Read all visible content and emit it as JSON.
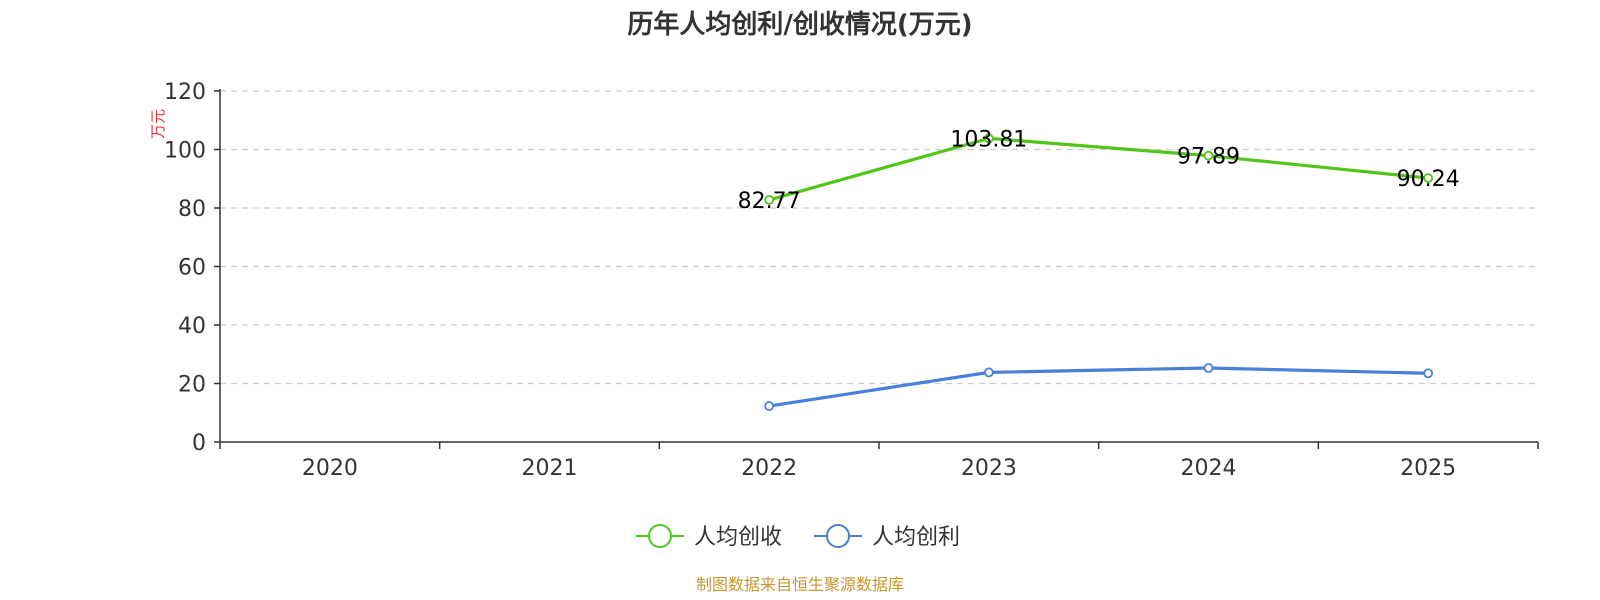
{
  "chart_data": {
    "type": "line",
    "title": "历年人均创利/创收情况(万元)",
    "ylabel": "万元",
    "xlabel": "",
    "categories": [
      "2020",
      "2021",
      "2022",
      "2023",
      "2024",
      "2025"
    ],
    "ylim": [
      0,
      120
    ],
    "yticks": [
      0,
      20,
      40,
      60,
      80,
      100,
      120
    ],
    "grid": true,
    "legend_position": "bottom-center",
    "series": [
      {
        "name": "人均创收",
        "color": "#52c41a",
        "values": [
          null,
          null,
          82.77,
          103.81,
          97.89,
          90.24
        ],
        "labels": [
          "",
          "",
          "82.77",
          "103.81",
          "97.89",
          "90.24"
        ]
      },
      {
        "name": "人均创利",
        "color": "#4a7fdc",
        "values": [
          null,
          null,
          12.3,
          23.8,
          25.3,
          23.5
        ],
        "labels": [
          "",
          "",
          "",
          "",
          "",
          ""
        ]
      }
    ]
  },
  "footer": {
    "source": "制图数据来自恒生聚源数据库"
  }
}
